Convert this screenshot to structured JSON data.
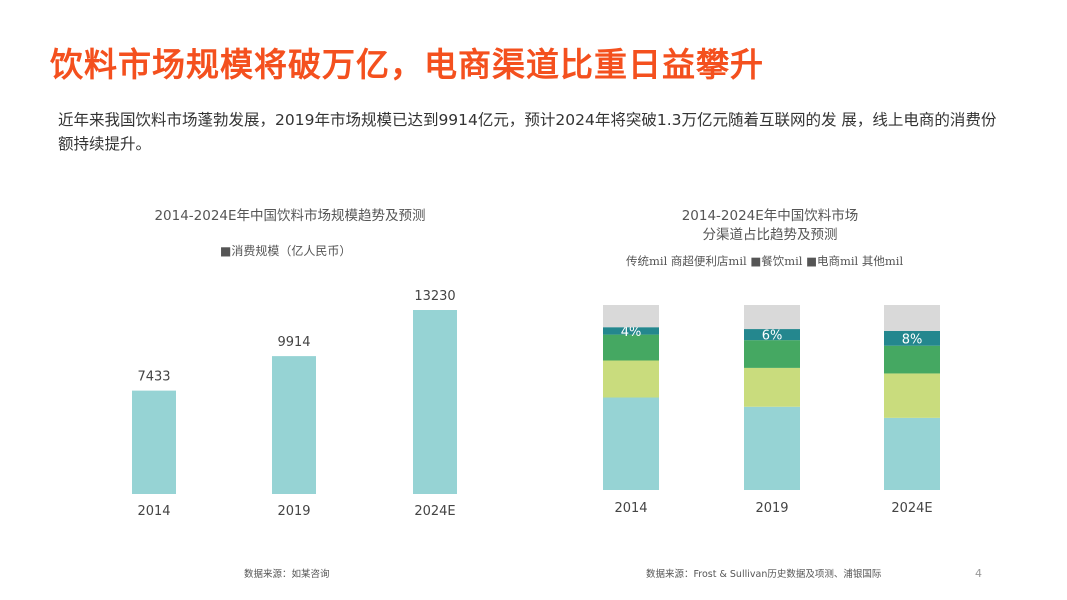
{
  "title": "饮料市场规模将破万亿，电商渠道比重日益攀升",
  "intro": "近年来我国饮料市场蓬勃发展，2019年市场规模已达到9914亿元，预计2024年将突破1.3万亿元随着互联网的发 展，线上电商的消费份额持续提升。",
  "colors": {
    "title": "#f4501e",
    "traditional": "#96d3d4",
    "retail": "#c9dc7d",
    "catering": "#45a862",
    "ecommerce": "#24878e",
    "other": "#d9d9d9"
  },
  "chart_data": [
    {
      "type": "bar",
      "title": "2014-2024E年中国饮料市场规模趋势及预测",
      "legend": "■消费规模（亿人民币）",
      "categories": [
        "2014",
        "2019",
        "2024E"
      ],
      "series": [
        {
          "name": "消费规模（亿人民币）",
          "values": [
            7433,
            9914,
            13230
          ]
        }
      ],
      "data_labels": [
        "7433",
        "9914",
        "13230"
      ],
      "ylim": [
        0,
        13230
      ],
      "grid": false
    },
    {
      "type": "bar",
      "stacked": true,
      "title": "2014-2024E年中国饮料市场\n分渠道占比趋势及预测",
      "title_lines": [
        "2014-2024E年中国饮料市场",
        "分渠道占比趋势及预测"
      ],
      "legend": "传统mil 商超便利店mil ■餐饮mil ■电商mil 其他mil",
      "categories": [
        "2014",
        "2019",
        "2024E"
      ],
      "unit": "%",
      "series": [
        {
          "name": "传统",
          "values": [
            50,
            45,
            39
          ]
        },
        {
          "name": "商超便利店",
          "values": [
            20,
            21,
            24
          ]
        },
        {
          "name": "餐饮",
          "values": [
            14,
            15,
            15
          ]
        },
        {
          "name": "电商",
          "values": [
            4,
            6,
            8
          ],
          "labels": [
            "4%",
            "6%",
            "8%"
          ]
        },
        {
          "name": "其他",
          "values": [
            12,
            13,
            14
          ]
        }
      ],
      "grid": false
    }
  ],
  "sources": [
    "数据来源：如某咨询",
    "数据来源：Frost & Sullivan历史数据及项测、浦银国际"
  ],
  "page": "4"
}
